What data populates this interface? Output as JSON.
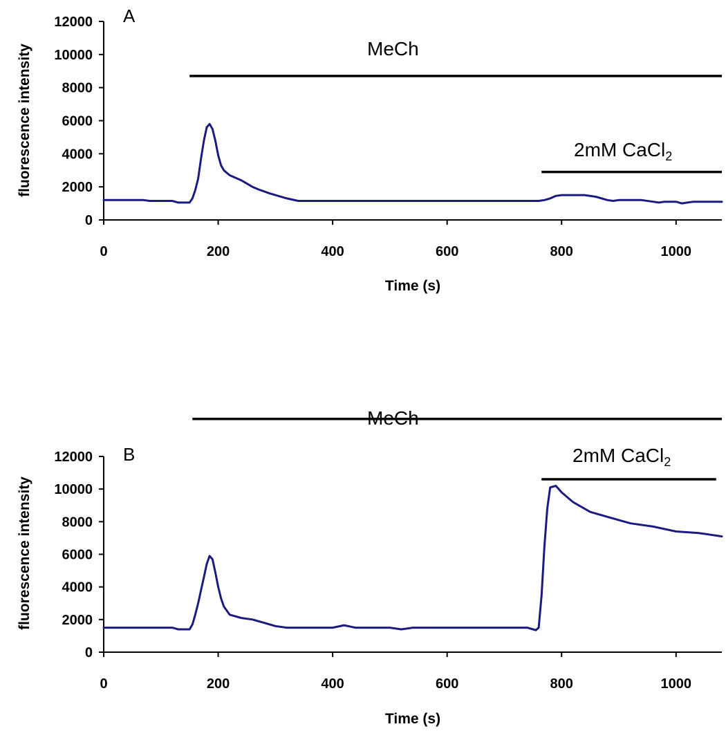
{
  "colors": {
    "trace": "#1a1a80",
    "axis": "#000000"
  },
  "chart_data": [
    {
      "type": "line",
      "panel_label": "A",
      "xlabel": "Time (s)",
      "ylabel": "fluorescence intensity",
      "xlim": [
        0,
        1080
      ],
      "ylim": [
        0,
        12000
      ],
      "xticks": [
        0,
        200,
        400,
        600,
        800,
        1000
      ],
      "yticks": [
        0,
        2000,
        4000,
        6000,
        8000,
        10000,
        12000
      ],
      "grid": false,
      "annotations": [
        {
          "label": "MeCh",
          "x_start": 150,
          "x_end": 1080,
          "y": 8700
        },
        {
          "label_main": "2mM CaCl",
          "label_sub": "2",
          "x_start": 765,
          "x_end": 1080,
          "y": 2900
        }
      ],
      "series": [
        {
          "x": [
            0,
            70,
            80,
            120,
            130,
            150,
            155,
            160,
            165,
            170,
            175,
            180,
            185,
            190,
            195,
            200,
            205,
            210,
            220,
            240,
            260,
            270,
            290,
            320,
            340,
            600,
            760,
            770,
            780,
            790,
            800,
            820,
            840,
            860,
            880,
            890,
            900,
            920,
            940,
            960,
            970,
            980,
            1000,
            1010,
            1020,
            1030,
            1060,
            1080
          ],
          "y": [
            1200,
            1200,
            1150,
            1150,
            1050,
            1050,
            1300,
            1800,
            2500,
            3700,
            4800,
            5600,
            5800,
            5500,
            4800,
            3900,
            3300,
            3000,
            2700,
            2400,
            2000,
            1850,
            1600,
            1300,
            1150,
            1150,
            1150,
            1200,
            1300,
            1450,
            1500,
            1500,
            1500,
            1400,
            1200,
            1150,
            1200,
            1200,
            1200,
            1100,
            1050,
            1100,
            1100,
            1000,
            1050,
            1100,
            1100,
            1100
          ]
        }
      ]
    },
    {
      "type": "line",
      "panel_label": "B",
      "xlabel": "Time (s)",
      "ylabel": "fluorescence intensity",
      "xlim": [
        0,
        1080
      ],
      "ylim": [
        0,
        12000
      ],
      "xticks": [
        0,
        200,
        400,
        600,
        800,
        1000
      ],
      "yticks": [
        0,
        2000,
        4000,
        6000,
        8000,
        10000,
        12000
      ],
      "grid": false,
      "annotations": [
        {
          "label": "MeCh",
          "x_start": 155,
          "x_end": 1080,
          "y": 14300
        },
        {
          "label_main": "2mM CaCl",
          "label_sub": "2",
          "x_start": 765,
          "x_end": 1070,
          "y": 10600
        }
      ],
      "series": [
        {
          "x": [
            0,
            120,
            130,
            150,
            155,
            160,
            165,
            170,
            175,
            180,
            185,
            190,
            195,
            200,
            205,
            210,
            220,
            240,
            260,
            280,
            300,
            320,
            400,
            420,
            440,
            500,
            520,
            540,
            740,
            750,
            755,
            760,
            765,
            770,
            775,
            780,
            790,
            800,
            820,
            850,
            880,
            920,
            960,
            1000,
            1040,
            1080
          ],
          "y": [
            1500,
            1500,
            1400,
            1400,
            1700,
            2300,
            3000,
            3800,
            4600,
            5400,
            5900,
            5700,
            4900,
            4000,
            3300,
            2800,
            2300,
            2100,
            2000,
            1800,
            1600,
            1500,
            1500,
            1650,
            1500,
            1500,
            1400,
            1500,
            1500,
            1400,
            1350,
            1500,
            3500,
            6500,
            8800,
            10100,
            10200,
            9800,
            9200,
            8600,
            8300,
            7900,
            7700,
            7400,
            7300,
            7100
          ]
        }
      ]
    }
  ]
}
